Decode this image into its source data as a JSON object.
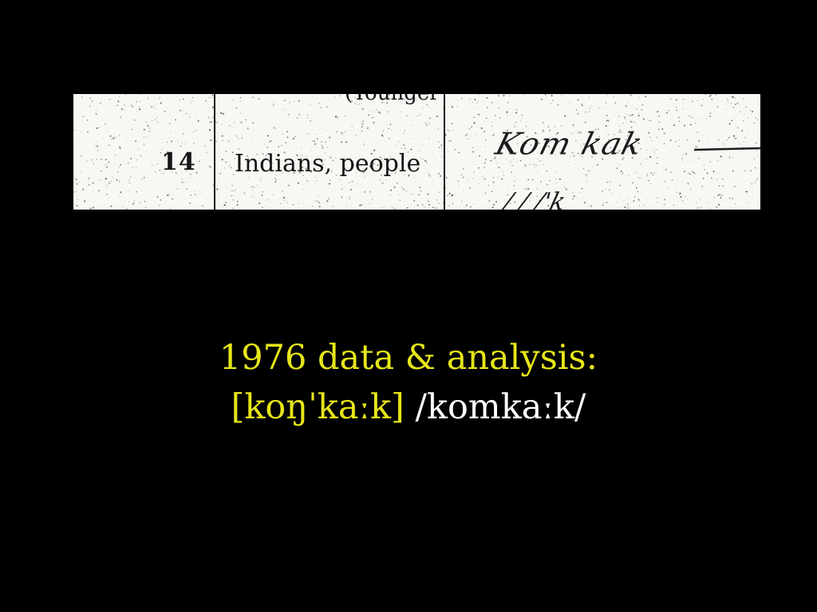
{
  "scan": {
    "cut_word": "(Younger",
    "row_number": "14",
    "row_gloss": "Indians, people",
    "handwritten_form": "Kom kak",
    "handwritten_below": "/ / /'k"
  },
  "caption": {
    "heading": "1976 data & analysis:",
    "phonetic": "[koŋˈkaːk]",
    "phonemic": "/komkaːk/"
  },
  "colors": {
    "background": "#000000",
    "caption_text": "#e6e61a",
    "phonemic_text": "#ffffff",
    "scan_paper": "#f7f7f4",
    "scan_ink": "#151515"
  }
}
